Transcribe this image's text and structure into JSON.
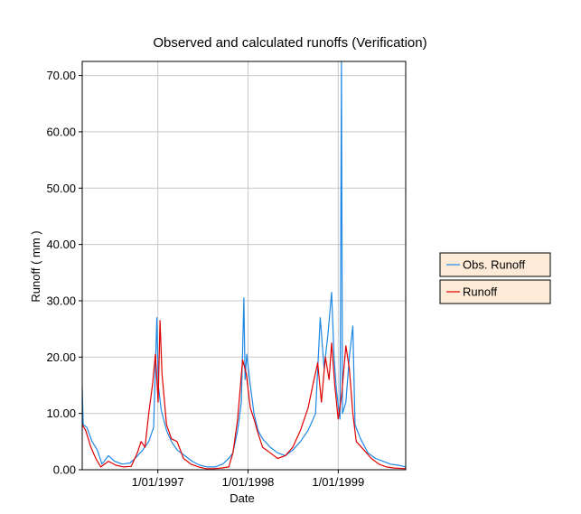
{
  "chart_data": {
    "type": "line",
    "title": "Observed and calculated runoffs (Verification)",
    "xlabel": "Date",
    "ylabel": "Runoff ( mm )",
    "x_ticks": [
      "1/01/1997",
      "1/01/1998",
      "1/01/1999"
    ],
    "y_ticks": [
      "0.00",
      "10.00",
      "20.00",
      "30.00",
      "40.00",
      "50.00",
      "60.00",
      "70.00"
    ],
    "xlim": [
      "1996-03-01",
      "1999-10-01"
    ],
    "ylim": [
      0,
      72.5
    ],
    "grid": true,
    "legend_position": "right",
    "series": [
      {
        "name": "Obs. Runoff",
        "color": "#1e88e5",
        "points": [
          [
            "1996-03-01",
            14.5
          ],
          [
            "1996-03-05",
            8.0
          ],
          [
            "1996-03-20",
            7.5
          ],
          [
            "1996-04-10",
            5.0
          ],
          [
            "1996-05-01",
            3.5
          ],
          [
            "1996-05-20",
            1.0
          ],
          [
            "1996-06-15",
            2.5
          ],
          [
            "1996-07-10",
            1.5
          ],
          [
            "1996-08-10",
            1.0
          ],
          [
            "1996-09-10",
            1.2
          ],
          [
            "1996-10-01",
            2.0
          ],
          [
            "1996-11-01",
            3.5
          ],
          [
            "1996-11-25",
            5.0
          ],
          [
            "1996-12-15",
            7.5
          ],
          [
            "1996-12-28",
            27.0
          ],
          [
            "1997-01-03",
            15.0
          ],
          [
            "1997-01-15",
            10.5
          ],
          [
            "1997-02-05",
            7.0
          ],
          [
            "1997-02-25",
            5.0
          ],
          [
            "1997-03-20",
            3.5
          ],
          [
            "1997-04-20",
            2.5
          ],
          [
            "1997-05-20",
            1.5
          ],
          [
            "1997-06-20",
            0.8
          ],
          [
            "1997-07-20",
            0.5
          ],
          [
            "1997-08-20",
            0.5
          ],
          [
            "1997-09-20",
            1.0
          ],
          [
            "1997-10-15",
            2.0
          ],
          [
            "1997-11-01",
            3.0
          ],
          [
            "1997-11-20",
            7.0
          ],
          [
            "1997-12-05",
            12.0
          ],
          [
            "1997-12-15",
            30.5
          ],
          [
            "1997-12-20",
            16.0
          ],
          [
            "1997-12-27",
            20.5
          ],
          [
            "1998-01-10",
            15.0
          ],
          [
            "1998-01-25",
            10.0
          ],
          [
            "1998-02-10",
            7.0
          ],
          [
            "1998-03-01",
            5.5
          ],
          [
            "1998-04-01",
            4.0
          ],
          [
            "1998-05-01",
            3.0
          ],
          [
            "1998-06-01",
            2.5
          ],
          [
            "1998-07-01",
            3.5
          ],
          [
            "1998-08-01",
            5.0
          ],
          [
            "1998-09-01",
            7.0
          ],
          [
            "1998-10-01",
            10.0
          ],
          [
            "1998-10-20",
            27.0
          ],
          [
            "1998-11-05",
            18.0
          ],
          [
            "1998-11-20",
            24.0
          ],
          [
            "1998-12-05",
            31.5
          ],
          [
            "1998-12-15",
            20.0
          ],
          [
            "1998-12-25",
            14.0
          ],
          [
            "1999-01-08",
            9.0
          ],
          [
            "1999-01-14",
            72.5
          ],
          [
            "1999-01-18",
            10.0
          ],
          [
            "1999-02-01",
            12.0
          ],
          [
            "1999-02-15",
            20.0
          ],
          [
            "1999-03-01",
            25.5
          ],
          [
            "1999-03-10",
            8.0
          ],
          [
            "1999-04-01",
            5.5
          ],
          [
            "1999-05-01",
            3.0
          ],
          [
            "1999-06-01",
            2.0
          ],
          [
            "1999-07-01",
            1.5
          ],
          [
            "1999-08-01",
            1.0
          ],
          [
            "1999-09-01",
            0.8
          ],
          [
            "1999-10-01",
            0.5
          ]
        ]
      },
      {
        "name": "Runoff",
        "color": "#e00000",
        "points": [
          [
            "1996-03-01",
            8.0
          ],
          [
            "1996-03-15",
            7.0
          ],
          [
            "1996-04-05",
            4.0
          ],
          [
            "1996-04-25",
            2.0
          ],
          [
            "1996-05-15",
            0.5
          ],
          [
            "1996-06-15",
            1.5
          ],
          [
            "1996-07-15",
            0.8
          ],
          [
            "1996-08-15",
            0.5
          ],
          [
            "1996-09-15",
            0.6
          ],
          [
            "1996-10-10",
            3.0
          ],
          [
            "1996-10-25",
            5.0
          ],
          [
            "1996-11-10",
            4.0
          ],
          [
            "1996-11-25",
            10.0
          ],
          [
            "1996-12-10",
            15.0
          ],
          [
            "1996-12-22",
            20.5
          ],
          [
            "1997-01-02",
            12.0
          ],
          [
            "1997-01-10",
            26.5
          ],
          [
            "1997-01-18",
            17.0
          ],
          [
            "1997-02-05",
            8.0
          ],
          [
            "1997-02-25",
            5.5
          ],
          [
            "1997-03-20",
            5.0
          ],
          [
            "1997-04-15",
            2.0
          ],
          [
            "1997-05-15",
            1.0
          ],
          [
            "1997-06-15",
            0.5
          ],
          [
            "1997-07-15",
            0.2
          ],
          [
            "1997-08-15",
            0.2
          ],
          [
            "1997-09-15",
            0.3
          ],
          [
            "1997-10-15",
            0.5
          ],
          [
            "1997-11-01",
            3.0
          ],
          [
            "1997-11-20",
            9.0
          ],
          [
            "1997-12-10",
            19.5
          ],
          [
            "1997-12-25",
            17.0
          ],
          [
            "1998-01-10",
            11.0
          ],
          [
            "1998-01-25",
            9.0
          ],
          [
            "1998-02-10",
            6.5
          ],
          [
            "1998-03-01",
            4.0
          ],
          [
            "1998-04-01",
            3.0
          ],
          [
            "1998-05-01",
            2.0
          ],
          [
            "1998-06-01",
            2.5
          ],
          [
            "1998-07-01",
            4.0
          ],
          [
            "1998-08-01",
            7.0
          ],
          [
            "1998-09-01",
            11.0
          ],
          [
            "1998-09-20",
            15.0
          ],
          [
            "1998-10-10",
            19.0
          ],
          [
            "1998-10-25",
            12.0
          ],
          [
            "1998-11-10",
            20.0
          ],
          [
            "1998-11-25",
            16.0
          ],
          [
            "1998-12-05",
            22.5
          ],
          [
            "1998-12-18",
            15.0
          ],
          [
            "1999-01-01",
            9.0
          ],
          [
            "1999-01-14",
            13.0
          ],
          [
            "1999-02-01",
            22.0
          ],
          [
            "1999-02-15",
            18.0
          ],
          [
            "1999-03-01",
            10.0
          ],
          [
            "1999-03-15",
            5.0
          ],
          [
            "1999-04-15",
            3.5
          ],
          [
            "1999-05-15",
            2.0
          ],
          [
            "1999-06-15",
            1.0
          ],
          [
            "1999-07-15",
            0.5
          ],
          [
            "1999-08-15",
            0.3
          ],
          [
            "1999-10-01",
            0.2
          ]
        ]
      }
    ]
  }
}
